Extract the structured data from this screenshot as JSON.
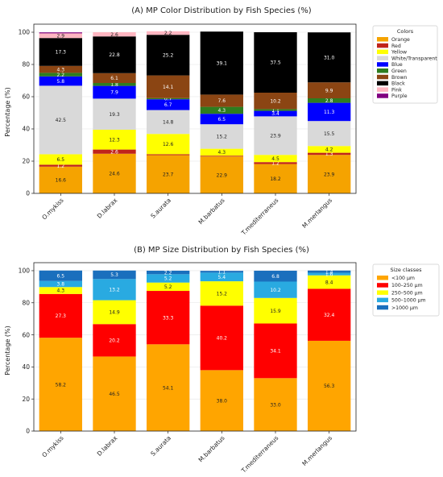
{
  "chart_data": [
    {
      "type": "bar",
      "stacked": true,
      "title": "(A) MP Color Distribution by Fish Species (%)",
      "xlabel": "",
      "ylabel": "Percentage (%)",
      "ylim": [
        0,
        105
      ],
      "yticks": [
        "0",
        "20",
        "40",
        "60",
        "80",
        "100"
      ],
      "grid": true,
      "legend_title": "Colors",
      "legend_position": "top-right",
      "categories": [
        "O.mykiss",
        "D.labrax",
        "S.aurata",
        "M.barbatus",
        "T.mediterraneus",
        "M.merlangus"
      ],
      "series": [
        {
          "name": "Orange",
          "color": "#f5a300",
          "values": [
            16.6,
            24.6,
            23.7,
            22.9,
            18.2,
            23.9
          ]
        },
        {
          "name": "Red",
          "color": "#c0241b",
          "values": [
            1.2,
            2.6,
            0.6,
            0.5,
            1.2,
            1.3
          ]
        },
        {
          "name": "Yellow",
          "color": "#ffff00",
          "values": [
            6.5,
            12.3,
            12.6,
            4.3,
            4.5,
            4.2
          ]
        },
        {
          "name": "White/Transparent",
          "color": "#d9d9d9",
          "values": [
            42.5,
            19.3,
            14.8,
            15.2,
            23.9,
            15.5
          ]
        },
        {
          "name": "Blue",
          "color": "#0000ff",
          "values": [
            5.8,
            7.9,
            6.7,
            6.5,
            3.4,
            11.3
          ]
        },
        {
          "name": "Green",
          "color": "#2e7d1f",
          "values": [
            2.2,
            1.8,
            0.7,
            4.3,
            1.1,
            2.8
          ]
        },
        {
          "name": "Brown",
          "color": "#8b4513",
          "values": [
            4.3,
            6.1,
            14.1,
            7.6,
            10.2,
            9.9
          ]
        },
        {
          "name": "Black",
          "color": "#000000",
          "values": [
            17.3,
            22.8,
            25.2,
            39.1,
            37.5,
            31.0
          ]
        },
        {
          "name": "Pink",
          "color": "#ffb6c1",
          "values": [
            2.9,
            2.6,
            2.2,
            0,
            0,
            0
          ]
        },
        {
          "name": "Purple",
          "color": "#800080",
          "values": [
            0.6,
            0,
            0,
            0,
            0,
            0
          ]
        }
      ],
      "labels_shown": [
        [
          "16.6",
          "1.2",
          "6.5",
          "42.5",
          "5.8",
          "2.2",
          "4.3",
          "17.3",
          "2.9",
          ""
        ],
        [
          "24.6",
          "2.6",
          "12.3",
          "19.3",
          "7.9",
          "1.8",
          "6.1",
          "22.8",
          "2.6",
          ""
        ],
        [
          "23.7",
          "",
          "12.6",
          "14.8",
          "6.7",
          "0.7",
          "14.1",
          "25.2",
          "2.2",
          ""
        ],
        [
          "22.9",
          "",
          "4.3",
          "15.2",
          "6.5",
          "4.3",
          "7.6",
          "39.1",
          "",
          ""
        ],
        [
          "18.2",
          "1.2",
          "4.5",
          "23.9",
          "3.4",
          "1.1",
          "10.2",
          "37.5",
          "",
          ""
        ],
        [
          "23.9",
          "1.3",
          "4.2",
          "15.5",
          "11.3",
          "2.8",
          "9.9",
          "31.0",
          "",
          ""
        ]
      ]
    },
    {
      "type": "bar",
      "stacked": true,
      "title": "(B) MP Size Distribution by Fish Species (%)",
      "xlabel": "",
      "ylabel": "Percentage (%)",
      "ylim": [
        0,
        105
      ],
      "yticks": [
        "0",
        "20",
        "40",
        "60",
        "80",
        "100"
      ],
      "grid": true,
      "legend_title": "Size classes",
      "legend_position": "top-right",
      "categories": [
        "O.mykiss",
        "D.labrax",
        "S.aurata",
        "M.barbatus",
        "T.mediterraneus",
        "M.merlangus"
      ],
      "series": [
        {
          "name": "<100 μm",
          "color": "#ffa500",
          "values": [
            58.2,
            46.5,
            54.1,
            38.0,
            33.0,
            56.3
          ]
        },
        {
          "name": "100–250 μm",
          "color": "#ff0000",
          "values": [
            27.3,
            20.2,
            33.3,
            40.2,
            34.1,
            32.4
          ]
        },
        {
          "name": "250–500 μm",
          "color": "#ffff00",
          "values": [
            4.3,
            14.9,
            5.2,
            15.2,
            15.9,
            8.4
          ]
        },
        {
          "name": "500–1000 μm",
          "color": "#29aae1",
          "values": [
            3.8,
            13.2,
            5.2,
            5.4,
            10.2,
            1.6
          ]
        },
        {
          "name": ">1000 μm",
          "color": "#1a6fbd",
          "values": [
            6.5,
            5.3,
            2.2,
            1.1,
            6.8,
            1.4
          ]
        }
      ],
      "labels_shown": [
        [
          "58.2",
          "27.3",
          "4.3",
          "3.8",
          "6.5"
        ],
        [
          "46.5",
          "20.2",
          "14.9",
          "13.2",
          "5.3"
        ],
        [
          "54.1",
          "33.3",
          "5.2",
          "5.2",
          "2.2"
        ],
        [
          "38.0",
          "40.2",
          "15.2",
          "5.4",
          "1.1"
        ],
        [
          "33.0",
          "34.1",
          "15.9",
          "10.2",
          "6.8"
        ],
        [
          "56.3",
          "32.4",
          "8.4",
          "1.6",
          "1.4"
        ]
      ]
    }
  ]
}
